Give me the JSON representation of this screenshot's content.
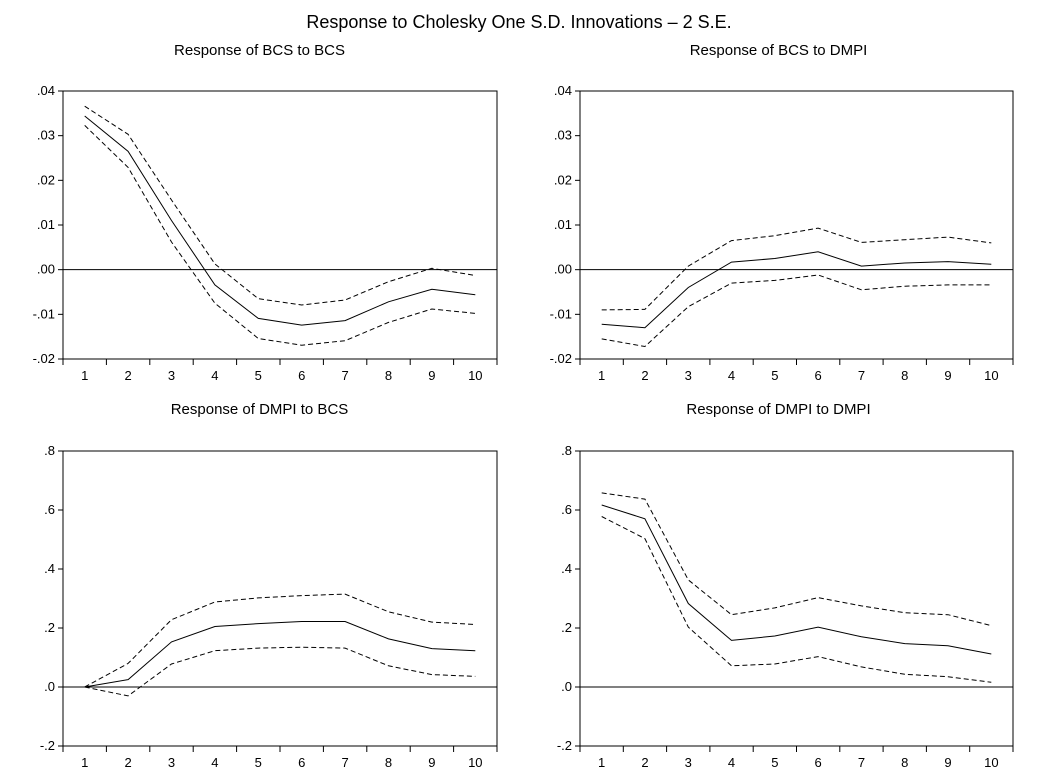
{
  "title": "Response to Cholesky One S.D. Innovations – 2 S.E.",
  "chart_data": [
    {
      "type": "line",
      "title": "Response of BCS to BCS",
      "x": [
        1,
        2,
        3,
        4,
        5,
        6,
        7,
        8,
        9,
        10
      ],
      "ylim": [
        -0.02,
        0.04
      ],
      "yticks": [
        -0.02,
        -0.01,
        0.0,
        0.01,
        0.02,
        0.03,
        0.04
      ],
      "yticklabels": [
        "-.02",
        "-.01",
        ".00",
        ".01",
        ".02",
        ".03",
        ".04"
      ],
      "series": [
        {
          "role": "response",
          "style": "solid",
          "values": [
            0.0344,
            0.0265,
            0.011,
            -0.0034,
            -0.0109,
            -0.0124,
            -0.0114,
            -0.0072,
            -0.0044,
            -0.0056
          ]
        },
        {
          "role": "upper",
          "style": "dashed",
          "values": [
            0.0366,
            0.0303,
            0.0156,
            0.0013,
            -0.0065,
            -0.0079,
            -0.0068,
            -0.0027,
            0.0003,
            -0.0013
          ]
        },
        {
          "role": "lower",
          "style": "dashed",
          "values": [
            0.0323,
            0.0229,
            0.0062,
            -0.0075,
            -0.0154,
            -0.0169,
            -0.0159,
            -0.0118,
            -0.0088,
            -0.0098
          ]
        }
      ]
    },
    {
      "type": "line",
      "title": "Response of BCS to DMPI",
      "x": [
        1,
        2,
        3,
        4,
        5,
        6,
        7,
        8,
        9,
        10
      ],
      "ylim": [
        -0.02,
        0.04
      ],
      "yticks": [
        -0.02,
        -0.01,
        0.0,
        0.01,
        0.02,
        0.03,
        0.04
      ],
      "yticklabels": [
        "-.02",
        "-.01",
        ".00",
        ".01",
        ".02",
        ".03",
        ".04"
      ],
      "series": [
        {
          "role": "response",
          "style": "solid",
          "values": [
            -0.0122,
            -0.013,
            -0.004,
            0.0017,
            0.0025,
            0.004,
            0.0008,
            0.0015,
            0.0018,
            0.0012
          ]
        },
        {
          "role": "upper",
          "style": "dashed",
          "values": [
            -0.009,
            -0.0089,
            0.0008,
            0.0065,
            0.0076,
            0.0093,
            0.0061,
            0.0067,
            0.0073,
            0.006
          ]
        },
        {
          "role": "lower",
          "style": "dashed",
          "values": [
            -0.0155,
            -0.0172,
            -0.0083,
            -0.003,
            -0.0024,
            -0.0012,
            -0.0045,
            -0.0037,
            -0.0034,
            -0.0034
          ]
        }
      ]
    },
    {
      "type": "line",
      "title": "Response of DMPI to BCS",
      "x": [
        1,
        2,
        3,
        4,
        5,
        6,
        7,
        8,
        9,
        10
      ],
      "ylim": [
        -0.2,
        0.8
      ],
      "yticks": [
        -0.2,
        0.0,
        0.2,
        0.4,
        0.6,
        0.8
      ],
      "yticklabels": [
        "-.2",
        ".0",
        ".2",
        ".4",
        ".6",
        ".8"
      ],
      "series": [
        {
          "role": "response",
          "style": "solid",
          "values": [
            0.0,
            0.025,
            0.153,
            0.205,
            0.215,
            0.222,
            0.222,
            0.163,
            0.13,
            0.123
          ]
        },
        {
          "role": "upper",
          "style": "dashed",
          "values": [
            0.0,
            0.08,
            0.228,
            0.288,
            0.302,
            0.31,
            0.315,
            0.255,
            0.22,
            0.212
          ]
        },
        {
          "role": "lower",
          "style": "dashed",
          "values": [
            0.0,
            -0.03,
            0.078,
            0.123,
            0.132,
            0.135,
            0.132,
            0.072,
            0.042,
            0.036
          ]
        }
      ]
    },
    {
      "type": "line",
      "title": "Response of DMPI to DMPI",
      "x": [
        1,
        2,
        3,
        4,
        5,
        6,
        7,
        8,
        9,
        10
      ],
      "ylim": [
        -0.2,
        0.8
      ],
      "yticks": [
        -0.2,
        0.0,
        0.2,
        0.4,
        0.6,
        0.8
      ],
      "yticklabels": [
        "-.2",
        ".0",
        ".2",
        ".4",
        ".6",
        ".8"
      ],
      "series": [
        {
          "role": "response",
          "style": "solid",
          "values": [
            0.617,
            0.57,
            0.283,
            0.158,
            0.173,
            0.203,
            0.17,
            0.147,
            0.14,
            0.112
          ]
        },
        {
          "role": "upper",
          "style": "dashed",
          "values": [
            0.658,
            0.637,
            0.363,
            0.245,
            0.268,
            0.303,
            0.275,
            0.252,
            0.245,
            0.208
          ]
        },
        {
          "role": "lower",
          "style": "dashed",
          "values": [
            0.578,
            0.503,
            0.203,
            0.072,
            0.078,
            0.103,
            0.068,
            0.043,
            0.035,
            0.016
          ]
        }
      ]
    }
  ]
}
